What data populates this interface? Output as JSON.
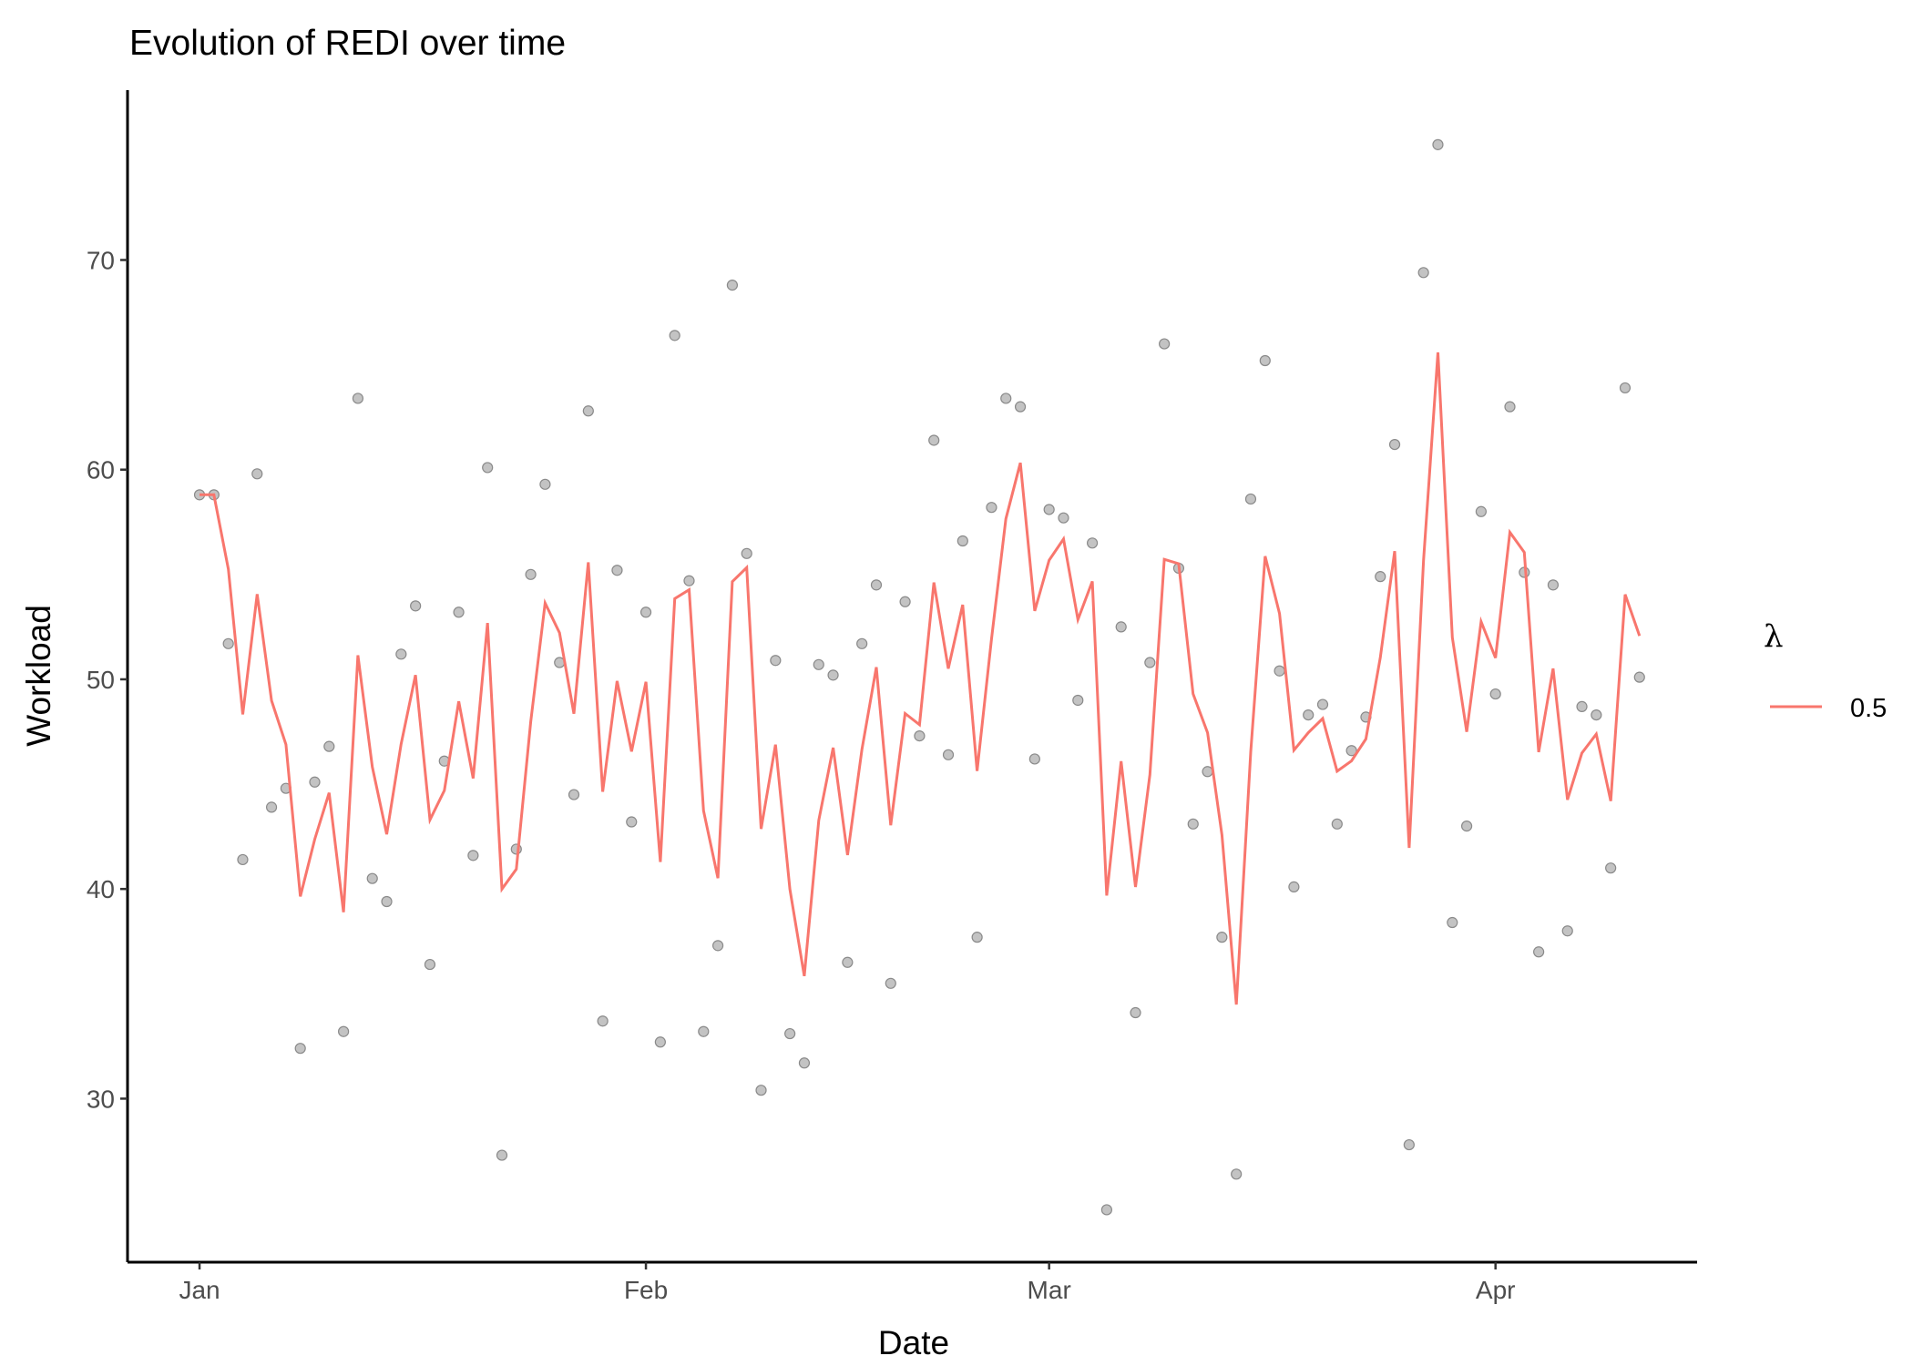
{
  "chart_data": {
    "type": "scatter",
    "title": "Evolution of REDI over time",
    "xlabel": "Date",
    "ylabel": "Workload",
    "xlim": [
      "12-27",
      "04-15"
    ],
    "ylim": [
      22.2,
      78.1
    ],
    "x_ticks": [
      {
        "date": "01-01",
        "label": "Jan"
      },
      {
        "date": "02-01",
        "label": "Feb"
      },
      {
        "date": "03-01",
        "label": "Mar"
      },
      {
        "date": "04-01",
        "label": "Apr"
      }
    ],
    "y_ticks": [
      30,
      40,
      50,
      60,
      70
    ],
    "grid": false,
    "legend": {
      "title": "λ",
      "placement": "right",
      "entries": [
        {
          "label": "0.5",
          "color": "#F8766D"
        }
      ]
    },
    "point_color": "#bdbdbd",
    "line": {
      "type": "EWMA",
      "lambda": 0.5,
      "color": "#F8766D"
    },
    "points": [
      [
        "01-01",
        58.8
      ],
      [
        "01-02",
        58.8
      ],
      [
        "01-03",
        51.7
      ],
      [
        "01-04",
        41.4
      ],
      [
        "01-05",
        59.8
      ],
      [
        "01-06",
        43.9
      ],
      [
        "01-07",
        44.8
      ],
      [
        "01-08",
        32.4
      ],
      [
        "01-09",
        45.1
      ],
      [
        "01-10",
        46.8
      ],
      [
        "01-11",
        33.2
      ],
      [
        "01-12",
        63.4
      ],
      [
        "01-13",
        40.5
      ],
      [
        "01-14",
        39.4
      ],
      [
        "01-15",
        51.2
      ],
      [
        "01-16",
        53.5
      ],
      [
        "01-17",
        36.4
      ],
      [
        "01-18",
        46.1
      ],
      [
        "01-19",
        53.2
      ],
      [
        "01-20",
        41.6
      ],
      [
        "01-21",
        60.1
      ],
      [
        "01-22",
        27.3
      ],
      [
        "01-23",
        41.9
      ],
      [
        "01-24",
        55.0
      ],
      [
        "01-25",
        59.3
      ],
      [
        "01-26",
        50.8
      ],
      [
        "01-27",
        44.5
      ],
      [
        "01-28",
        62.8
      ],
      [
        "01-29",
        33.7
      ],
      [
        "01-30",
        55.2
      ],
      [
        "01-31",
        43.2
      ],
      [
        "02-01",
        53.2
      ],
      [
        "02-02",
        32.7
      ],
      [
        "02-03",
        66.4
      ],
      [
        "02-04",
        54.7
      ],
      [
        "02-05",
        33.2
      ],
      [
        "02-06",
        37.3
      ],
      [
        "02-07",
        68.8
      ],
      [
        "02-08",
        56.0
      ],
      [
        "02-09",
        30.4
      ],
      [
        "02-10",
        50.9
      ],
      [
        "02-11",
        33.1
      ],
      [
        "02-12",
        31.7
      ],
      [
        "02-13",
        50.7
      ],
      [
        "02-14",
        50.2
      ],
      [
        "02-15",
        36.5
      ],
      [
        "02-16",
        51.7
      ],
      [
        "02-17",
        54.5
      ],
      [
        "02-18",
        35.5
      ],
      [
        "02-19",
        53.7
      ],
      [
        "02-20",
        47.3
      ],
      [
        "02-21",
        61.4
      ],
      [
        "02-22",
        46.4
      ],
      [
        "02-23",
        56.6
      ],
      [
        "02-24",
        37.7
      ],
      [
        "02-25",
        58.2
      ],
      [
        "02-26",
        63.4
      ],
      [
        "02-27",
        63.0
      ],
      [
        "02-28",
        46.2
      ],
      [
        "03-01",
        58.1
      ],
      [
        "03-02",
        57.7
      ],
      [
        "03-03",
        49.0
      ],
      [
        "03-04",
        56.5
      ],
      [
        "03-05",
        24.7
      ],
      [
        "03-06",
        52.5
      ],
      [
        "03-07",
        34.1
      ],
      [
        "03-08",
        50.8
      ],
      [
        "03-09",
        66.0
      ],
      [
        "03-10",
        55.3
      ],
      [
        "03-11",
        43.1
      ],
      [
        "03-12",
        45.6
      ],
      [
        "03-13",
        37.7
      ],
      [
        "03-14",
        26.4
      ],
      [
        "03-15",
        58.6
      ],
      [
        "03-16",
        65.2
      ],
      [
        "03-17",
        50.4
      ],
      [
        "03-18",
        40.1
      ],
      [
        "03-19",
        48.3
      ],
      [
        "03-20",
        48.8
      ],
      [
        "03-21",
        43.1
      ],
      [
        "03-22",
        46.6
      ],
      [
        "03-23",
        48.2
      ],
      [
        "03-24",
        54.9
      ],
      [
        "03-25",
        61.2
      ],
      [
        "03-26",
        27.8
      ],
      [
        "03-27",
        69.4
      ],
      [
        "03-28",
        75.5
      ],
      [
        "03-29",
        38.4
      ],
      [
        "03-30",
        43.0
      ],
      [
        "03-31",
        58.0
      ],
      [
        "04-01",
        49.3
      ],
      [
        "04-02",
        63.0
      ],
      [
        "04-03",
        55.1
      ],
      [
        "04-04",
        37.0
      ],
      [
        "04-05",
        54.5
      ],
      [
        "04-06",
        38.0
      ],
      [
        "04-07",
        48.7
      ],
      [
        "04-08",
        48.3
      ],
      [
        "04-09",
        41.0
      ],
      [
        "04-10",
        63.9
      ],
      [
        "04-11",
        50.1
      ]
    ]
  }
}
